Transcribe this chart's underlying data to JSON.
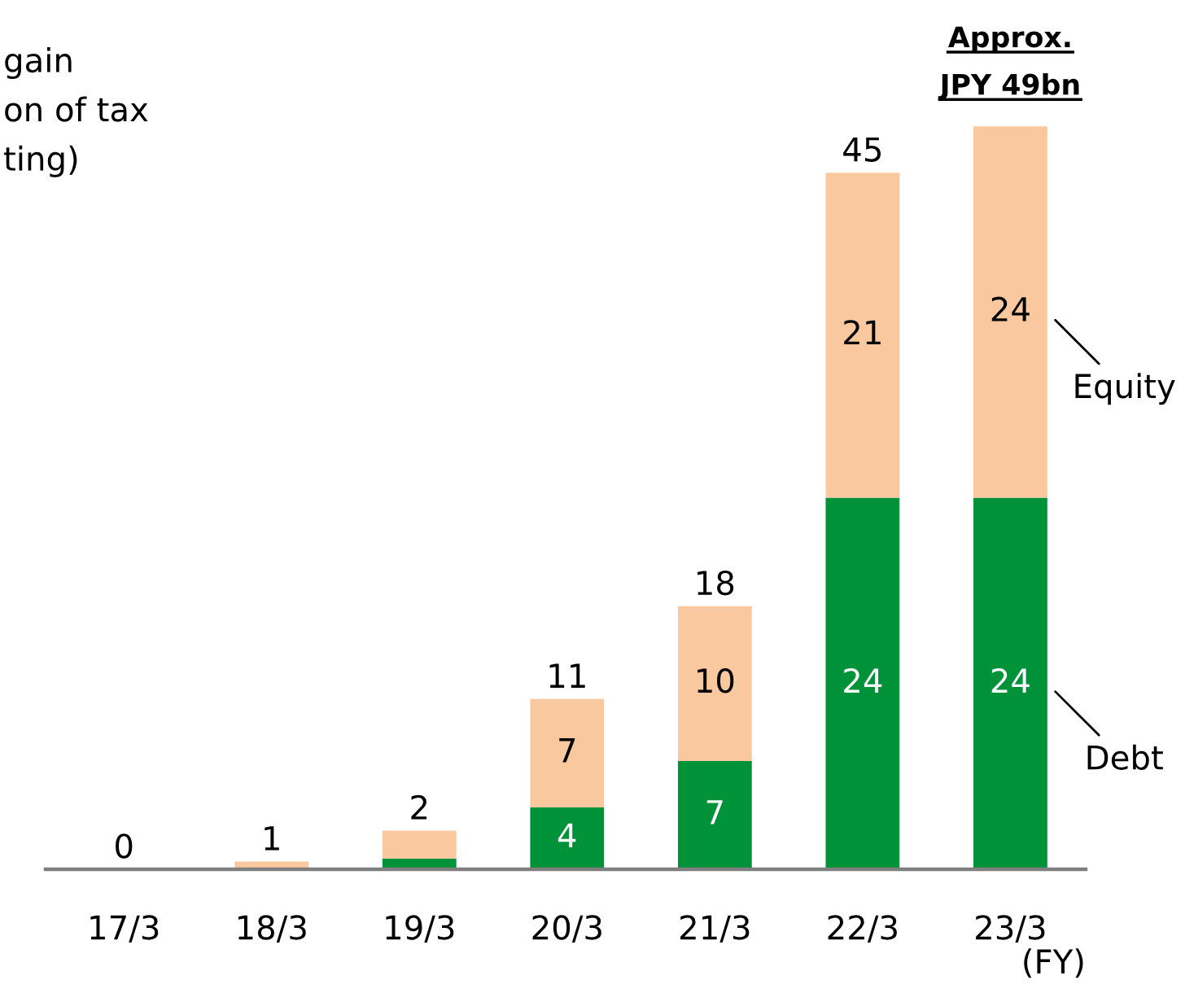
{
  "chart_data": {
    "type": "bar",
    "stacked": true,
    "categories": [
      "17/3",
      "18/3",
      "19/3",
      "20/3",
      "21/3",
      "22/3",
      "23/3"
    ],
    "series": [
      {
        "name": "Debt",
        "color": "#009239",
        "values": [
          0,
          0,
          0.7,
          4,
          7,
          24,
          24
        ],
        "value_labels": [
          null,
          null,
          null,
          "4",
          "7",
          "24",
          "24"
        ]
      },
      {
        "name": "Equity",
        "color": "#f9c89e",
        "values": [
          0,
          0.5,
          1.8,
          7,
          10,
          21,
          24
        ],
        "value_labels": [
          null,
          null,
          null,
          "7",
          "10",
          "21",
          "24"
        ]
      }
    ],
    "totals": [
      "0",
      "1",
      "2",
      "11",
      "18",
      "45",
      null
    ],
    "xlabel": "(FY)",
    "annotations": [
      "gain\non of tax\nting)",
      "Approx. JPY 49bn"
    ]
  }
}
